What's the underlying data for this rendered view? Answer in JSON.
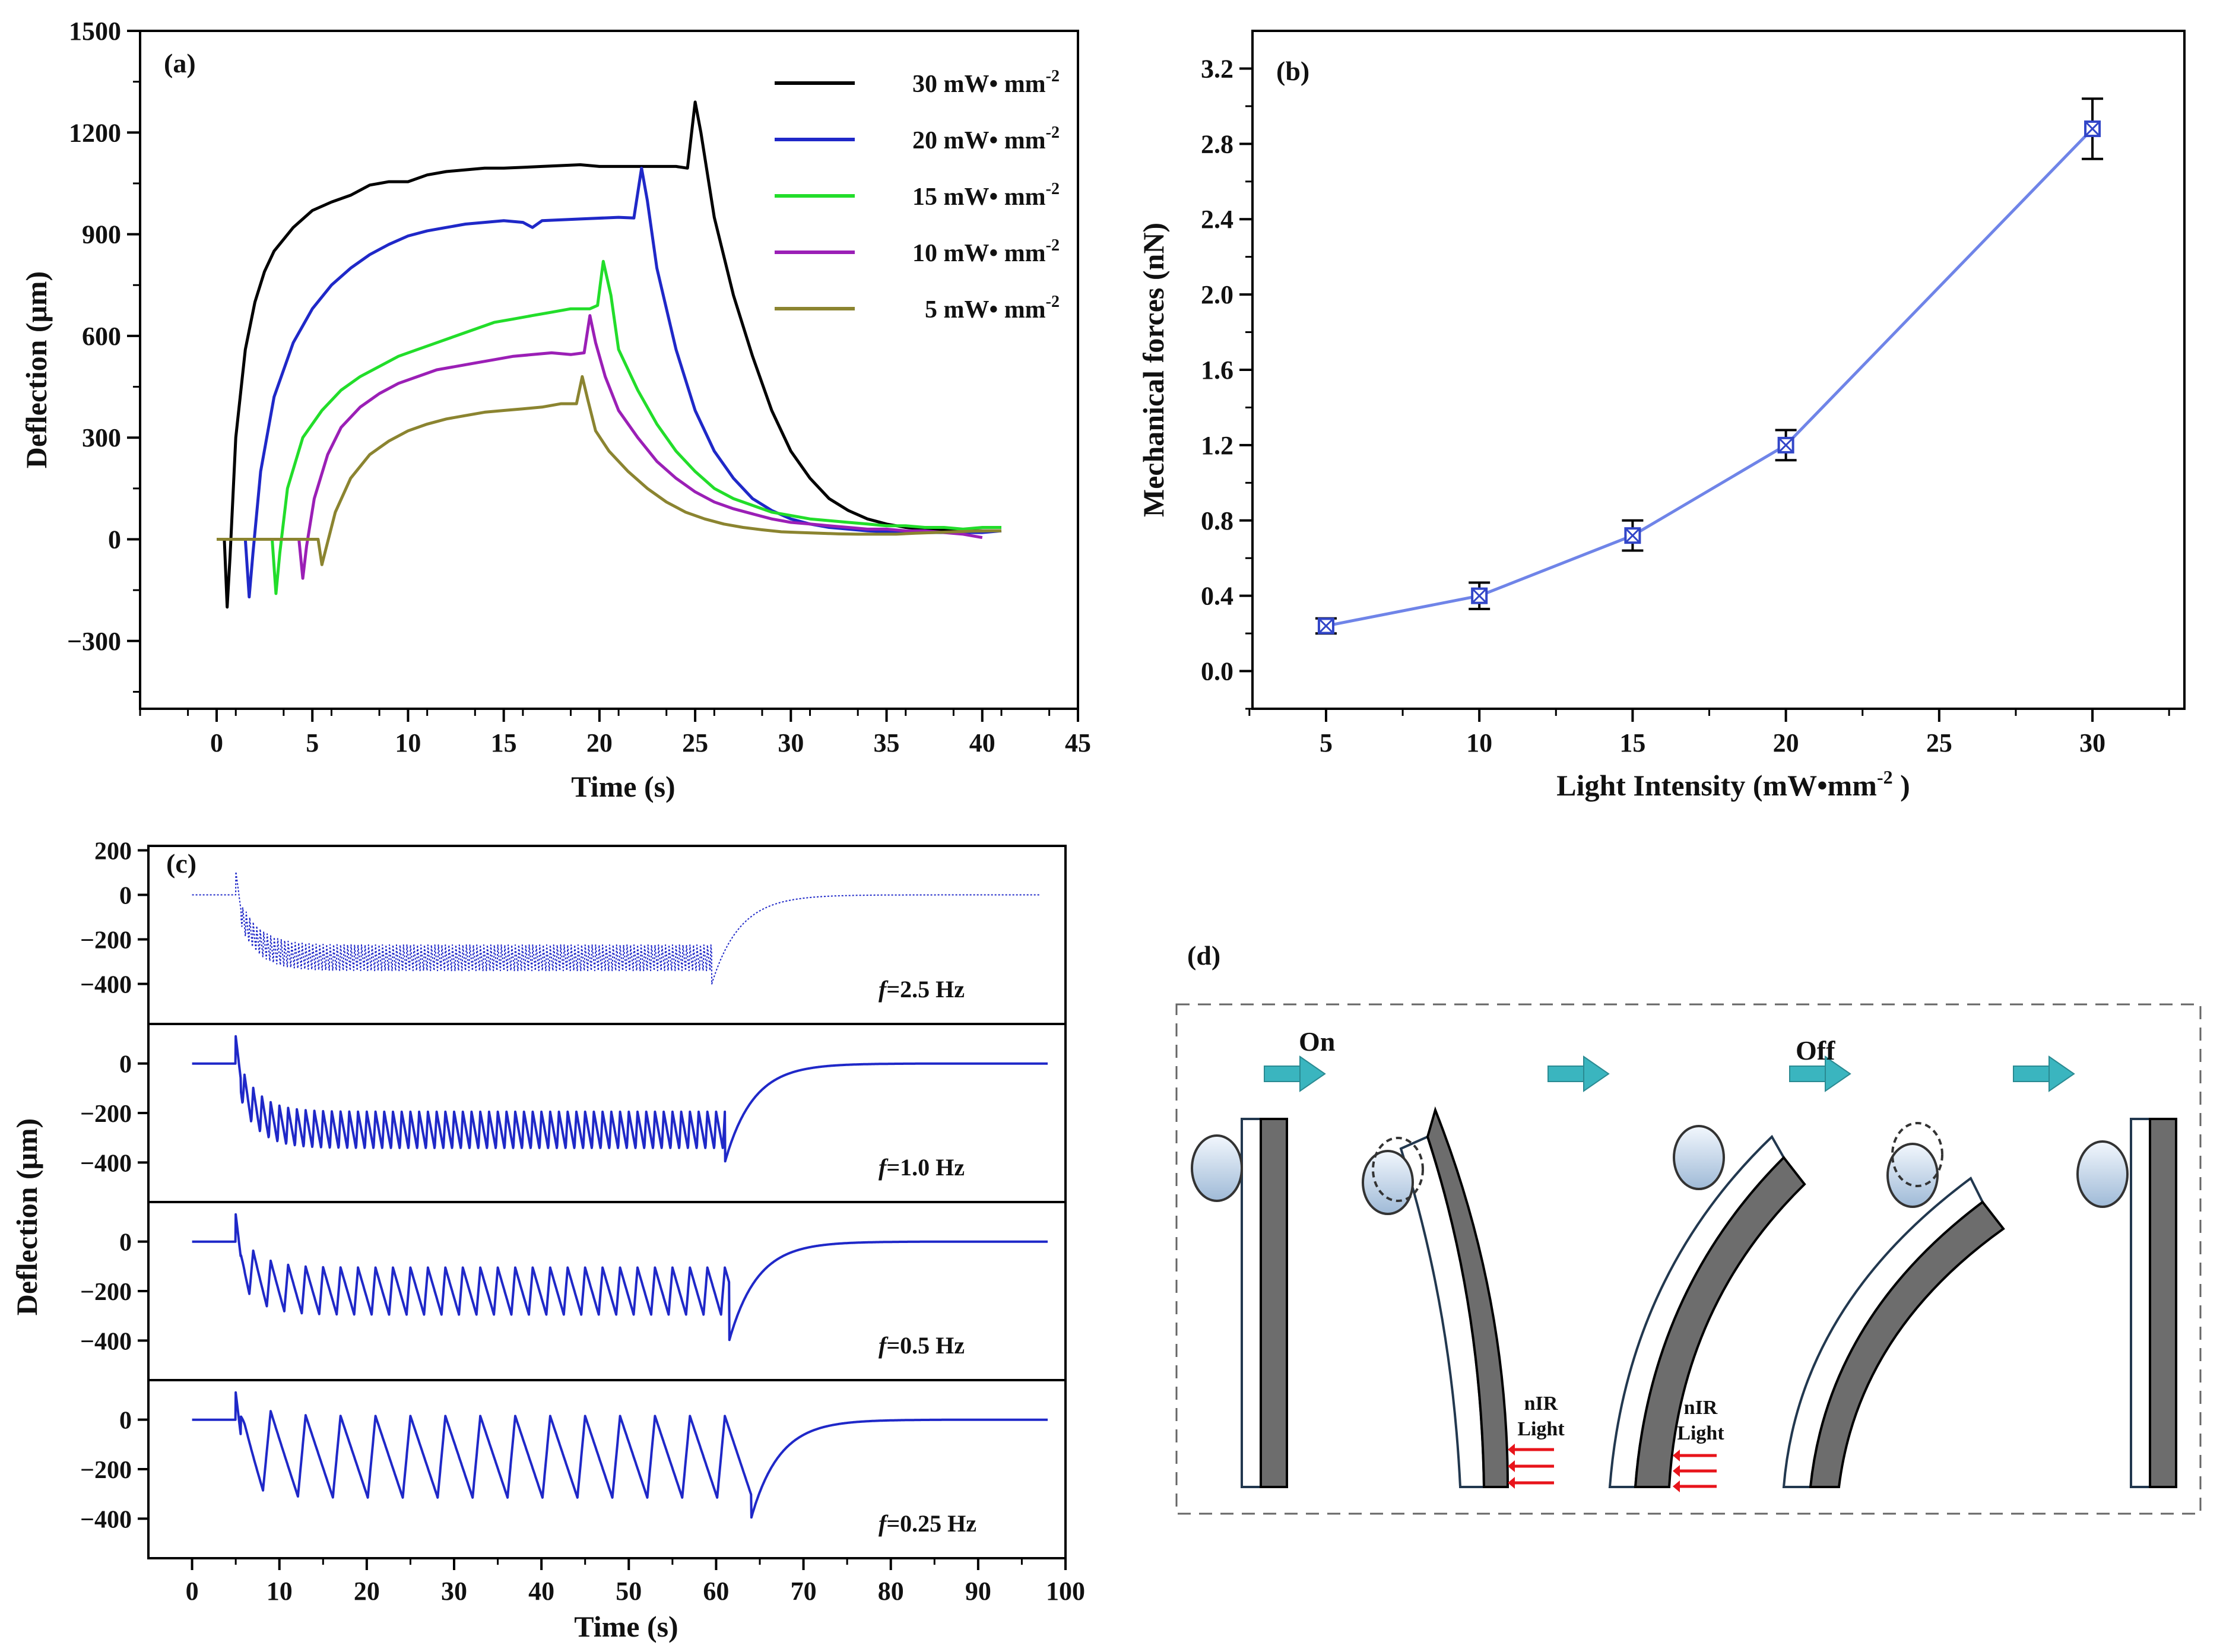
{
  "chart_data": [
    {
      "id": "a",
      "type": "line",
      "panel_label": "(a)",
      "xlabel": "Time (s)",
      "ylabel": "Deflection (μm)",
      "xlim": [
        -4,
        45
      ],
      "ylim": [
        -500,
        1500
      ],
      "x_ticks": [
        0,
        5,
        10,
        15,
        20,
        25,
        30,
        35,
        40,
        45
      ],
      "y_ticks": [
        -300,
        0,
        300,
        600,
        900,
        1200,
        1500
      ],
      "y_tick_labels": [
        "−300",
        "0",
        "300",
        "600",
        "900",
        "1200",
        "1500"
      ],
      "legend_position": "top-right",
      "series": [
        {
          "name": "30 mW• mm",
          "sup": "-2",
          "color": "#000000",
          "x": [
            0,
            0.4,
            0.55,
            0.7,
            1,
            1.5,
            2,
            2.5,
            3,
            4,
            5,
            6,
            7,
            8,
            9,
            10,
            11,
            12,
            13,
            14,
            15,
            17,
            19,
            20,
            22,
            24,
            24.6,
            25,
            25.3,
            26,
            27,
            28,
            29,
            30,
            31,
            32,
            33,
            34,
            35,
            36,
            37,
            38,
            39,
            40,
            41
          ],
          "y": [
            0,
            0,
            -200,
            -50,
            300,
            560,
            700,
            790,
            850,
            920,
            970,
            995,
            1015,
            1045,
            1055,
            1055,
            1075,
            1085,
            1090,
            1095,
            1095,
            1100,
            1105,
            1100,
            1100,
            1100,
            1095,
            1290,
            1200,
            950,
            720,
            540,
            380,
            260,
            180,
            120,
            85,
            60,
            45,
            35,
            30,
            28,
            25,
            25,
            25
          ]
        },
        {
          "name": "20 mW• mm",
          "sup": "-2",
          "color": "#1f28c8",
          "x": [
            0,
            1.5,
            1.7,
            1.9,
            2.3,
            3,
            4,
            5,
            6,
            7,
            8,
            9,
            10,
            11,
            12,
            13,
            14,
            15,
            16,
            16.5,
            17,
            19,
            21,
            21.8,
            22.2,
            22.5,
            23,
            24,
            25,
            26,
            27,
            28,
            29,
            30,
            31,
            32,
            33,
            34,
            35,
            36,
            37,
            38,
            39,
            40,
            41
          ],
          "y": [
            0,
            0,
            -170,
            -40,
            200,
            420,
            580,
            680,
            750,
            800,
            840,
            870,
            895,
            910,
            920,
            930,
            935,
            940,
            935,
            920,
            940,
            945,
            950,
            948,
            1095,
            1000,
            800,
            560,
            380,
            260,
            180,
            120,
            85,
            60,
            45,
            35,
            30,
            25,
            22,
            20,
            20,
            20,
            20,
            20,
            25
          ]
        },
        {
          "name": "15 mW• mm",
          "sup": "-2",
          "color": "#22dd2a",
          "x": [
            0,
            2.9,
            3.1,
            3.3,
            3.7,
            4.5,
            5.5,
            6.5,
            7.5,
            8.5,
            9.5,
            10.5,
            11.5,
            12.5,
            13.5,
            14.5,
            15.5,
            16.5,
            17.5,
            18.5,
            19.5,
            19.9,
            20.2,
            20.6,
            21,
            22,
            23,
            24,
            25,
            26,
            27,
            28,
            29,
            30,
            31,
            32,
            33,
            34,
            35,
            36,
            37,
            38,
            39,
            40,
            41
          ],
          "y": [
            0,
            0,
            -160,
            -40,
            150,
            300,
            380,
            440,
            480,
            510,
            540,
            560,
            580,
            600,
            620,
            640,
            650,
            660,
            670,
            680,
            680,
            690,
            820,
            720,
            560,
            440,
            340,
            260,
            200,
            150,
            120,
            100,
            80,
            70,
            60,
            55,
            50,
            45,
            40,
            40,
            35,
            35,
            30,
            35,
            35
          ]
        },
        {
          "name": "10 mW• mm",
          "sup": "-2",
          "color": "#9b1fb6",
          "x": [
            0,
            4.3,
            4.5,
            4.7,
            5.1,
            5.8,
            6.5,
            7.5,
            8.5,
            9.5,
            10.5,
            11.5,
            12.5,
            13.5,
            14.5,
            15.5,
            16.5,
            17.5,
            18.5,
            19.2,
            19.5,
            19.8,
            20.3,
            21,
            22,
            23,
            24,
            25,
            26,
            27,
            28,
            29,
            30,
            31,
            32,
            33,
            34,
            35,
            36,
            37,
            38,
            39,
            40
          ],
          "y": [
            0,
            0,
            -115,
            -20,
            120,
            250,
            330,
            390,
            430,
            460,
            480,
            500,
            510,
            520,
            530,
            540,
            545,
            550,
            545,
            550,
            660,
            580,
            480,
            380,
            300,
            230,
            180,
            140,
            110,
            90,
            75,
            60,
            50,
            45,
            40,
            35,
            30,
            30,
            25,
            25,
            20,
            15,
            5
          ]
        },
        {
          "name": "5 mW• mm",
          "sup": "-2",
          "color": "#8b8430",
          "x": [
            0,
            5.3,
            5.5,
            5.7,
            6.2,
            7,
            8,
            9,
            10,
            11,
            12,
            13,
            14,
            15,
            16,
            17,
            18,
            18.8,
            19.1,
            19.4,
            19.8,
            20.5,
            21.5,
            22.5,
            23.5,
            24.5,
            25.5,
            26.5,
            27.5,
            28.5,
            29.5,
            30.5,
            31.5,
            32.5,
            33.5,
            34.5,
            35.5,
            36.5,
            37.5,
            38.5,
            39.5,
            40.5,
            41
          ],
          "y": [
            0,
            0,
            -75,
            -30,
            80,
            180,
            250,
            290,
            320,
            340,
            355,
            365,
            375,
            380,
            385,
            390,
            400,
            400,
            480,
            410,
            320,
            260,
            200,
            150,
            110,
            80,
            60,
            45,
            35,
            28,
            22,
            20,
            18,
            16,
            15,
            15,
            15,
            18,
            20,
            22,
            24,
            25,
            25
          ]
        }
      ]
    },
    {
      "id": "b",
      "type": "line",
      "panel_label": "(b)",
      "xlabel": "Light Intensity (mW•mm",
      "xlabel_sup": "-2",
      "xlabel_end": " )",
      "ylabel": "Mechanical forces (nN)",
      "xlim": [
        2.6,
        33
      ],
      "ylim": [
        -0.2,
        3.4
      ],
      "x_ticks": [
        5,
        10,
        15,
        20,
        25,
        30
      ],
      "y_ticks": [
        0.0,
        0.4,
        0.8,
        1.2,
        1.6,
        2.0,
        2.4,
        2.8,
        3.2
      ],
      "y_tick_labels": [
        "0.0",
        "0.4",
        "0.8",
        "1.2",
        "1.6",
        "2.0",
        "2.4",
        "2.8",
        "3.2"
      ],
      "series": [
        {
          "name": "Mechanical forces",
          "color": "#6f84e8",
          "x": [
            5,
            10,
            15,
            20,
            30
          ],
          "y": [
            0.24,
            0.4,
            0.72,
            1.2,
            2.88
          ],
          "err": [
            0.04,
            0.07,
            0.08,
            0.08,
            0.16
          ]
        }
      ]
    },
    {
      "id": "c",
      "type": "line",
      "panel_label": "(c)",
      "xlabel": "Time (s)",
      "ylabel": "Deflection (μm)",
      "xlim": [
        -5,
        100
      ],
      "x_ticks": [
        0,
        10,
        20,
        30,
        40,
        50,
        60,
        70,
        80,
        90,
        100
      ],
      "color": "#1f28c8",
      "subplots": [
        {
          "label_prefix": "f",
          "label_value": "=2.5 Hz",
          "ylim": [
            -580,
            220
          ],
          "y_ticks": [
            200,
            0,
            -200,
            -400
          ],
          "y_tick_labels": [
            "200",
            "0",
            "−200",
            "−400"
          ],
          "frequency": 2.5,
          "start": 5,
          "end": 59.5,
          "amplitude": 120,
          "settle": -285,
          "end_time": 97,
          "dotted": true
        },
        {
          "label_prefix": "f",
          "label_value": "=1.0 Hz",
          "ylim": [
            -560,
            160
          ],
          "y_ticks": [
            0,
            -200,
            -400
          ],
          "y_tick_labels": [
            "0",
            "−200",
            "−400"
          ],
          "frequency": 1.0,
          "start": 5,
          "end": 61,
          "amplitude": 150,
          "settle": -270,
          "end_time": 98,
          "dotted": false
        },
        {
          "label_prefix": "f",
          "label_value": "=0.5 Hz",
          "ylim": [
            -560,
            160
          ],
          "y_ticks": [
            0,
            -200,
            -400
          ],
          "y_tick_labels": [
            "0",
            "−200",
            "−400"
          ],
          "frequency": 0.5,
          "start": 5,
          "end": 61.5,
          "amplitude": 190,
          "settle": -200,
          "end_time": 98,
          "dotted": false
        },
        {
          "label_prefix": "f",
          "label_value": "=0.25 Hz",
          "ylim": [
            -560,
            160
          ],
          "y_ticks": [
            0,
            -200,
            -400
          ],
          "y_tick_labels": [
            "0",
            "−200",
            "−400"
          ],
          "frequency": 0.25,
          "start": 5,
          "end": 64,
          "amplitude": 330,
          "settle": -150,
          "end_time": 98,
          "dotted": false
        }
      ]
    }
  ],
  "panel_d": {
    "label": "(d)",
    "on_label": "On",
    "off_label": "Off",
    "light_label_line1": "nIR",
    "light_label_line2": "Light",
    "arrow_color": "#3ab5bf",
    "laser_color": "#e8141b"
  }
}
